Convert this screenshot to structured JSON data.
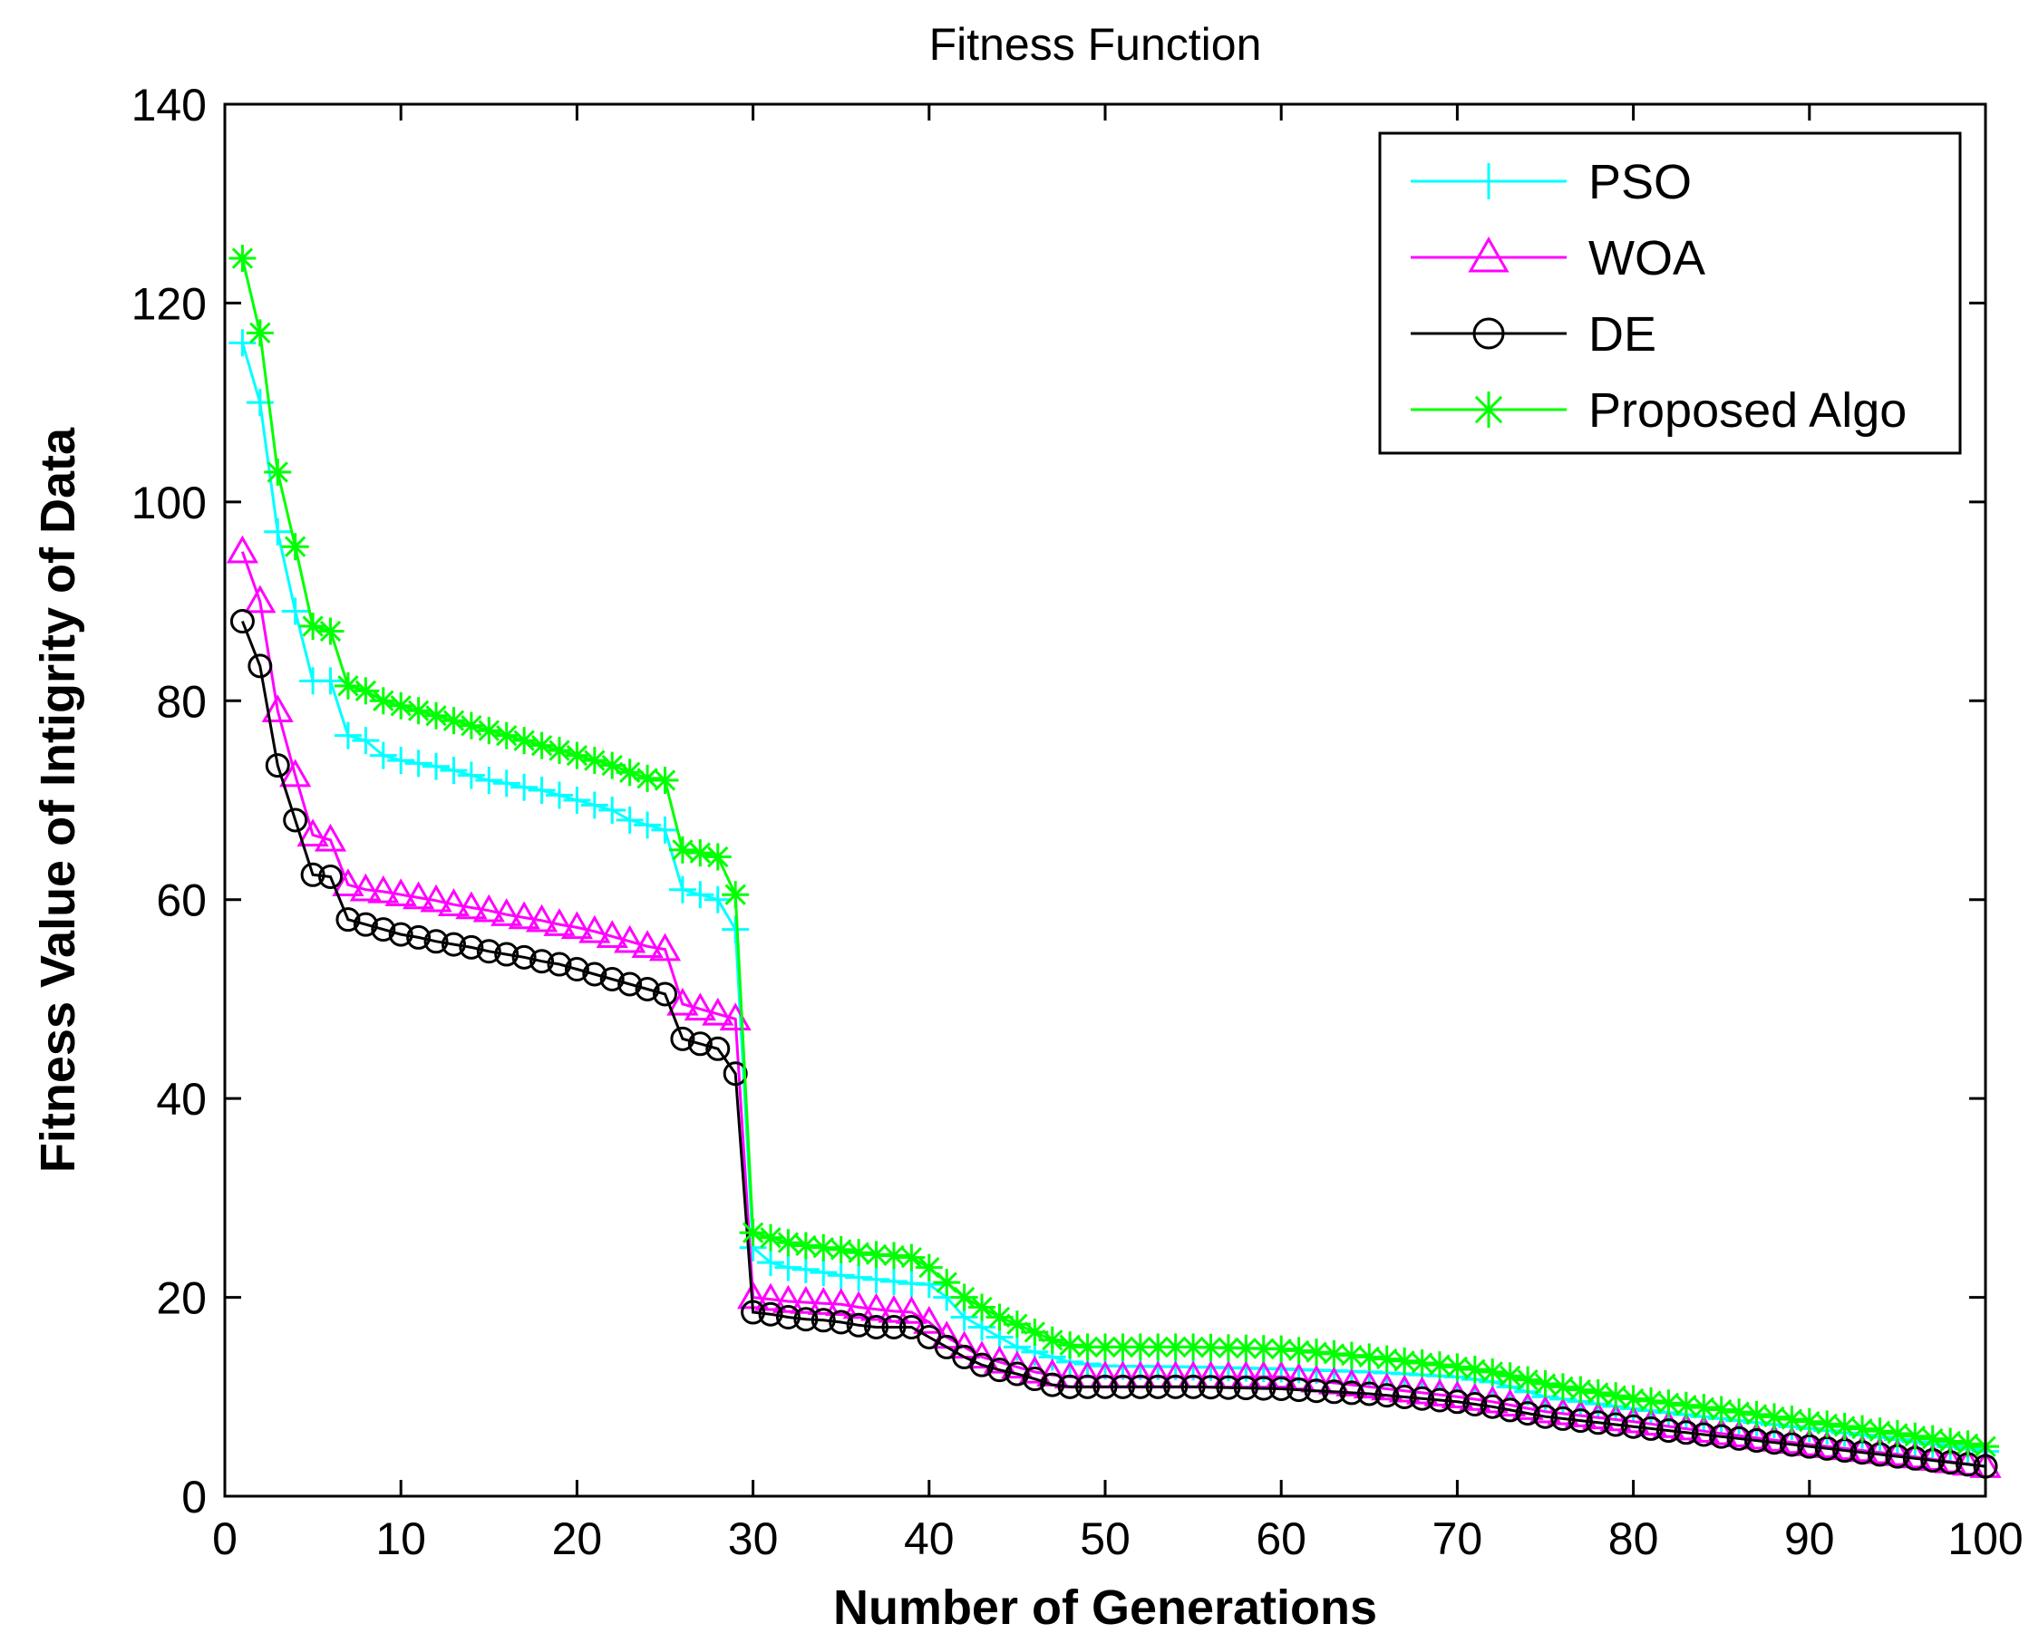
{
  "chart_data": {
    "type": "line",
    "title": "Fitness Function",
    "xlabel": "Number of Generations",
    "ylabel": "Fitness Value of Intigrity of Data",
    "xlim": [
      0,
      100
    ],
    "ylim": [
      0,
      140
    ],
    "xticks": [
      0,
      10,
      20,
      30,
      40,
      50,
      60,
      70,
      80,
      90,
      100
    ],
    "yticks": [
      0,
      20,
      40,
      60,
      80,
      100,
      120,
      140
    ],
    "legend_position": "top-right",
    "grid": false,
    "series": [
      {
        "name": "PSO",
        "color": "#00ffff",
        "marker": "plus",
        "points": [
          [
            1,
            116
          ],
          [
            2,
            110
          ],
          [
            3,
            97
          ],
          [
            4,
            89
          ],
          [
            5,
            82
          ],
          [
            6,
            82
          ],
          [
            7,
            76.5
          ],
          [
            8,
            76
          ],
          [
            9,
            74.5
          ],
          [
            10,
            74
          ],
          [
            11,
            73.7
          ],
          [
            12,
            73.4
          ],
          [
            13,
            73
          ],
          [
            14,
            72.5
          ],
          [
            15,
            72
          ],
          [
            16,
            71.7
          ],
          [
            17,
            71.3
          ],
          [
            18,
            71
          ],
          [
            19,
            70.5
          ],
          [
            20,
            70
          ],
          [
            21,
            69.5
          ],
          [
            22,
            69
          ],
          [
            23,
            68
          ],
          [
            24,
            67.5
          ],
          [
            25,
            67
          ],
          [
            26,
            61
          ],
          [
            27,
            60.5
          ],
          [
            28,
            60
          ],
          [
            29,
            57
          ],
          [
            30,
            25
          ],
          [
            31,
            23.5
          ],
          [
            32,
            23
          ],
          [
            33,
            22.8
          ],
          [
            34,
            22.5
          ],
          [
            35,
            22.2
          ],
          [
            36,
            22
          ],
          [
            37,
            21.8
          ],
          [
            38,
            21.6
          ],
          [
            39,
            21.4
          ],
          [
            40,
            21.3
          ],
          [
            41,
            20
          ],
          [
            42,
            18
          ],
          [
            43,
            17
          ],
          [
            44,
            16
          ],
          [
            45,
            15
          ],
          [
            46,
            14.5
          ],
          [
            47,
            14
          ],
          [
            48,
            13.5
          ],
          [
            49,
            13.3
          ],
          [
            50,
            13.1
          ],
          [
            55,
            13
          ],
          [
            60,
            12.8
          ],
          [
            65,
            12.5
          ],
          [
            70,
            12
          ],
          [
            72,
            11.5
          ],
          [
            75,
            10
          ],
          [
            80,
            8.8
          ],
          [
            85,
            7.8
          ],
          [
            90,
            6.8
          ],
          [
            95,
            5.7
          ],
          [
            100,
            4.5
          ]
        ]
      },
      {
        "name": "WOA",
        "color": "#ff00ff",
        "marker": "triangle",
        "points": [
          [
            1,
            95
          ],
          [
            2,
            90
          ],
          [
            3,
            79
          ],
          [
            4,
            72.5
          ],
          [
            5,
            66.5
          ],
          [
            6,
            66
          ],
          [
            7,
            61.5
          ],
          [
            8,
            61
          ],
          [
            9,
            60.8
          ],
          [
            10,
            60.5
          ],
          [
            11,
            60.2
          ],
          [
            12,
            59.9
          ],
          [
            13,
            59.5
          ],
          [
            14,
            59.2
          ],
          [
            15,
            58.9
          ],
          [
            16,
            58.5
          ],
          [
            17,
            58.2
          ],
          [
            18,
            57.9
          ],
          [
            19,
            57.5
          ],
          [
            20,
            57.2
          ],
          [
            21,
            56.8
          ],
          [
            22,
            56.3
          ],
          [
            23,
            55.8
          ],
          [
            24,
            55.3
          ],
          [
            25,
            55
          ],
          [
            26,
            49.5
          ],
          [
            27,
            49
          ],
          [
            28,
            48.5
          ],
          [
            29,
            48
          ],
          [
            30,
            20
          ],
          [
            31,
            19.8
          ],
          [
            32,
            19.6
          ],
          [
            33,
            19.5
          ],
          [
            34,
            19.4
          ],
          [
            35,
            19.3
          ],
          [
            36,
            19
          ],
          [
            37,
            18.8
          ],
          [
            38,
            18.6
          ],
          [
            39,
            18.5
          ],
          [
            40,
            17.5
          ],
          [
            41,
            16
          ],
          [
            42,
            15
          ],
          [
            43,
            14
          ],
          [
            44,
            13.5
          ],
          [
            45,
            13
          ],
          [
            46,
            12.5
          ],
          [
            47,
            12.2
          ],
          [
            48,
            12
          ],
          [
            49,
            12
          ],
          [
            50,
            12
          ],
          [
            55,
            12
          ],
          [
            60,
            12
          ],
          [
            65,
            11
          ],
          [
            70,
            10
          ],
          [
            72,
            9.5
          ],
          [
            75,
            8.5
          ],
          [
            80,
            7.5
          ],
          [
            85,
            6.3
          ],
          [
            90,
            5.2
          ],
          [
            95,
            4.2
          ],
          [
            100,
            3
          ]
        ]
      },
      {
        "name": "DE",
        "color": "#000000",
        "marker": "circle",
        "points": [
          [
            1,
            88
          ],
          [
            2,
            83.5
          ],
          [
            3,
            73.5
          ],
          [
            4,
            68
          ],
          [
            5,
            62.5
          ],
          [
            6,
            62.3
          ],
          [
            7,
            58
          ],
          [
            8,
            57.5
          ],
          [
            9,
            57
          ],
          [
            10,
            56.5
          ],
          [
            11,
            56.2
          ],
          [
            12,
            55.8
          ],
          [
            13,
            55.5
          ],
          [
            14,
            55.2
          ],
          [
            15,
            54.8
          ],
          [
            16,
            54.5
          ],
          [
            17,
            54.2
          ],
          [
            18,
            53.8
          ],
          [
            19,
            53.5
          ],
          [
            20,
            53
          ],
          [
            21,
            52.5
          ],
          [
            22,
            52
          ],
          [
            23,
            51.5
          ],
          [
            24,
            51
          ],
          [
            25,
            50.5
          ],
          [
            26,
            46
          ],
          [
            27,
            45.5
          ],
          [
            28,
            45
          ],
          [
            29,
            42.5
          ],
          [
            30,
            18.5
          ],
          [
            31,
            18.3
          ],
          [
            32,
            18
          ],
          [
            33,
            17.8
          ],
          [
            34,
            17.7
          ],
          [
            35,
            17.5
          ],
          [
            36,
            17.2
          ],
          [
            37,
            17
          ],
          [
            38,
            17
          ],
          [
            39,
            17
          ],
          [
            40,
            16
          ],
          [
            41,
            15
          ],
          [
            42,
            14
          ],
          [
            43,
            13.2
          ],
          [
            44,
            12.7
          ],
          [
            45,
            12.3
          ],
          [
            46,
            11.8
          ],
          [
            47,
            11.2
          ],
          [
            48,
            11
          ],
          [
            49,
            11
          ],
          [
            50,
            11
          ],
          [
            55,
            11
          ],
          [
            60,
            10.8
          ],
          [
            65,
            10.3
          ],
          [
            70,
            9.5
          ],
          [
            72,
            9
          ],
          [
            75,
            8
          ],
          [
            80,
            7
          ],
          [
            85,
            6
          ],
          [
            90,
            5
          ],
          [
            95,
            4
          ],
          [
            100,
            3
          ]
        ]
      },
      {
        "name": "Proposed Algo",
        "color": "#00ff00",
        "marker": "asterisk",
        "points": [
          [
            1,
            124.5
          ],
          [
            2,
            117
          ],
          [
            3,
            103
          ],
          [
            4,
            95.5
          ],
          [
            5,
            87.5
          ],
          [
            6,
            87
          ],
          [
            7,
            81.5
          ],
          [
            8,
            81
          ],
          [
            9,
            80
          ],
          [
            10,
            79.5
          ],
          [
            11,
            79
          ],
          [
            12,
            78.5
          ],
          [
            13,
            78
          ],
          [
            14,
            77.5
          ],
          [
            15,
            77
          ],
          [
            16,
            76.5
          ],
          [
            17,
            76
          ],
          [
            18,
            75.5
          ],
          [
            19,
            75
          ],
          [
            20,
            74.5
          ],
          [
            21,
            74
          ],
          [
            22,
            73.5
          ],
          [
            23,
            72.8
          ],
          [
            24,
            72.2
          ],
          [
            25,
            72
          ],
          [
            26,
            65
          ],
          [
            27,
            64.7
          ],
          [
            28,
            64.3
          ],
          [
            29,
            60.5
          ],
          [
            30,
            26.5
          ],
          [
            31,
            26
          ],
          [
            32,
            25.5
          ],
          [
            33,
            25.2
          ],
          [
            34,
            25
          ],
          [
            35,
            24.8
          ],
          [
            36,
            24.5
          ],
          [
            37,
            24.3
          ],
          [
            38,
            24.2
          ],
          [
            39,
            24
          ],
          [
            40,
            23
          ],
          [
            41,
            21.5
          ],
          [
            42,
            20
          ],
          [
            43,
            19
          ],
          [
            44,
            18
          ],
          [
            45,
            17.3
          ],
          [
            46,
            16.5
          ],
          [
            47,
            15.7
          ],
          [
            48,
            15.2
          ],
          [
            49,
            15
          ],
          [
            50,
            15
          ],
          [
            55,
            15
          ],
          [
            60,
            14.8
          ],
          [
            65,
            14
          ],
          [
            70,
            13
          ],
          [
            72,
            12.5
          ],
          [
            75,
            11.3
          ],
          [
            80,
            9.8
          ],
          [
            85,
            8.7
          ],
          [
            90,
            7.5
          ],
          [
            95,
            6.3
          ],
          [
            100,
            5
          ]
        ]
      }
    ]
  }
}
